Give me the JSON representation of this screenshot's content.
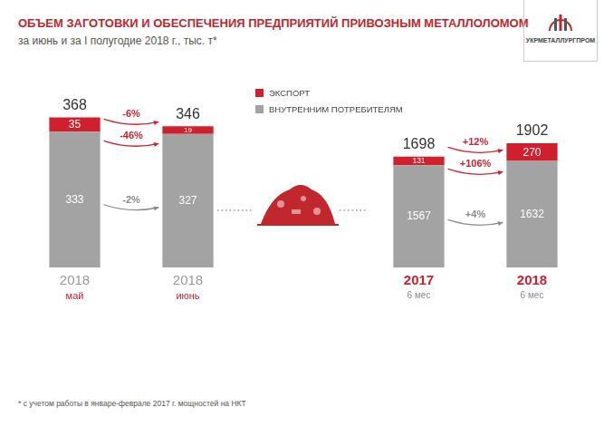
{
  "header": {
    "title": "ОБЪЕМ ЗАГОТОВКИ И ОБЕСПЕЧЕНИЯ ПРЕДПРИЯТИЙ ПРИВОЗНЫМ МЕТАЛЛОЛОМОМ",
    "subtitle": "за июнь и за I полугодие 2018 г., тыс. т*",
    "logo": "УКРМЕТАЛЛУРГПРОМ"
  },
  "footnote": "* с учетом работы в январе-феврале 2017 г. мощностей на НКТ",
  "chart_data": [
    {
      "type": "bar",
      "stacked": true,
      "data_labels": true,
      "tick_labels": "x",
      "grid": false,
      "legend": "right",
      "categories": [
        [
          "2018",
          "май"
        ],
        [
          "2018",
          "июнь"
        ]
      ],
      "series": [
        {
          "name": "ВНУТРЕННИМ ПОТРЕБИТЕЛЯМ",
          "color": "#a3a3a3",
          "values": [
            333,
            327
          ],
          "change": "-2%"
        },
        {
          "name": "ЭКСПОРТ",
          "color": "#d0202e",
          "values": [
            35,
            19
          ],
          "change": "-46%"
        }
      ],
      "totals": [
        368,
        346
      ],
      "total_change": "-6%",
      "ylim": [
        0,
        400
      ]
    },
    {
      "type": "bar",
      "stacked": true,
      "data_labels": true,
      "tick_labels": "x",
      "grid": false,
      "categories": [
        [
          "2017",
          "6 мес"
        ],
        [
          "2018",
          "6 мес"
        ]
      ],
      "series": [
        {
          "name": "ВНУТРЕННИМ ПОТРЕБИТЕЛЯМ",
          "color": "#a3a3a3",
          "values": [
            1567,
            1632
          ],
          "change": "+4%"
        },
        {
          "name": "ЭКСПОРТ",
          "color": "#d0202e",
          "values": [
            131,
            270
          ],
          "change": "+106%"
        }
      ],
      "totals": [
        1698,
        1902
      ],
      "total_change": "+12%",
      "ylim": [
        0,
        2500
      ]
    }
  ]
}
